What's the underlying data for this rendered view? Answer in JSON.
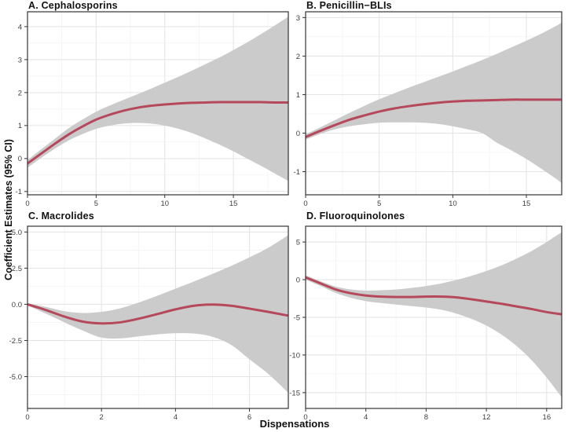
{
  "figure": {
    "y_axis_label": "Coefficient Estimates (95% CI)",
    "x_axis_label": "Dispensations"
  },
  "colors": {
    "curve": "#b5495b",
    "band": "#cbcbcb",
    "grid_major": "#e3e3e3",
    "grid_minor": "#f1f1f1",
    "border": "#333333",
    "tick": "#333333",
    "tick_label": "#404040",
    "plot_bg": "#ffffff"
  },
  "chart_data": [
    {
      "type": "line",
      "title": "A. Cephalosporins",
      "series_name": "coefficient-estimate",
      "x_ticks": [
        0,
        5,
        10,
        15
      ],
      "x_tick_labels": [
        "0",
        "5",
        "10",
        "15"
      ],
      "y_ticks": [
        -1,
        0,
        1,
        2,
        3,
        4
      ],
      "y_tick_labels": [
        "-1",
        "0",
        "1",
        "2",
        "3",
        "4"
      ],
      "xlim": [
        0,
        19
      ],
      "ylim": [
        -1.1,
        4.45
      ],
      "x": [
        0,
        1,
        2,
        3,
        4,
        5,
        6,
        7,
        8,
        9,
        10,
        11,
        12,
        13,
        14,
        15,
        16,
        17,
        18,
        19
      ],
      "line": [
        -0.15,
        0.15,
        0.45,
        0.73,
        0.97,
        1.18,
        1.33,
        1.45,
        1.54,
        1.6,
        1.64,
        1.67,
        1.69,
        1.7,
        1.71,
        1.71,
        1.71,
        1.71,
        1.7,
        1.7
      ],
      "ci_upper": [
        -0.05,
        0.28,
        0.6,
        0.92,
        1.18,
        1.42,
        1.61,
        1.78,
        1.95,
        2.12,
        2.3,
        2.48,
        2.67,
        2.87,
        3.07,
        3.29,
        3.52,
        3.77,
        4.03,
        4.3
      ],
      "ci_lower": [
        -0.28,
        0.02,
        0.3,
        0.55,
        0.74,
        0.9,
        1.0,
        1.06,
        1.08,
        1.06,
        1.0,
        0.9,
        0.77,
        0.6,
        0.42,
        0.22,
        0.0,
        -0.22,
        -0.45,
        -0.68
      ]
    },
    {
      "type": "line",
      "title": "B. Penicillin−BLIs",
      "series_name": "coefficient-estimate",
      "x_ticks": [
        0,
        5,
        10,
        15
      ],
      "x_tick_labels": [
        "0",
        "5",
        "10",
        "15"
      ],
      "y_ticks": [
        -1,
        0,
        1,
        2,
        3
      ],
      "y_tick_labels": [
        "-1",
        "0",
        "1",
        "2",
        "3"
      ],
      "xlim": [
        0,
        17.4
      ],
      "ylim": [
        -1.6,
        3.15
      ],
      "x": [
        0,
        1,
        2,
        3,
        4,
        5,
        6,
        7,
        8,
        9,
        10,
        11,
        12,
        13,
        14,
        15,
        16,
        17,
        17.4
      ],
      "line": [
        -0.1,
        0.06,
        0.21,
        0.35,
        0.46,
        0.56,
        0.64,
        0.7,
        0.75,
        0.79,
        0.82,
        0.84,
        0.85,
        0.86,
        0.87,
        0.87,
        0.87,
        0.87,
        0.87
      ],
      "ci_upper": [
        -0.03,
        0.15,
        0.34,
        0.53,
        0.71,
        0.88,
        1.03,
        1.18,
        1.32,
        1.46,
        1.6,
        1.75,
        1.9,
        2.06,
        2.23,
        2.4,
        2.58,
        2.78,
        2.87
      ],
      "ci_lower": [
        -0.17,
        -0.02,
        0.1,
        0.18,
        0.23,
        0.27,
        0.28,
        0.28,
        0.27,
        0.24,
        0.18,
        0.1,
        0.0,
        -0.25,
        -0.45,
        -0.67,
        -0.92,
        -1.18,
        -1.3
      ]
    },
    {
      "type": "line",
      "title": "C. Macrolides",
      "series_name": "coefficient-estimate",
      "x_ticks": [
        0,
        2,
        4,
        6
      ],
      "x_tick_labels": [
        "0",
        "2",
        "4",
        "6"
      ],
      "y_ticks": [
        -5.0,
        -2.5,
        0.0,
        2.5,
        5.0
      ],
      "y_tick_labels": [
        "-5.0",
        "-2.5",
        "0.0",
        "2.5",
        "5.0"
      ],
      "xlim": [
        0,
        7.05
      ],
      "ylim": [
        -7.2,
        5.4
      ],
      "x": [
        0,
        0.5,
        1,
        1.5,
        2,
        2.5,
        3,
        3.5,
        4,
        4.5,
        5,
        5.5,
        6,
        6.5,
        7,
        7.05
      ],
      "line": [
        0.0,
        -0.4,
        -0.85,
        -1.2,
        -1.32,
        -1.25,
        -1.0,
        -0.68,
        -0.35,
        -0.1,
        -0.02,
        -0.1,
        -0.3,
        -0.52,
        -0.76,
        -0.78
      ],
      "ci_upper": [
        0.08,
        -0.18,
        -0.48,
        -0.6,
        -0.52,
        -0.28,
        0.12,
        0.58,
        1.08,
        1.58,
        2.1,
        2.65,
        3.25,
        3.9,
        4.7,
        4.85
      ],
      "ci_lower": [
        -0.08,
        -0.65,
        -1.25,
        -1.82,
        -2.3,
        -2.36,
        -2.22,
        -2.08,
        -2.0,
        -2.02,
        -2.25,
        -2.8,
        -3.8,
        -4.8,
        -6.0,
        -6.2
      ]
    },
    {
      "type": "line",
      "title": "D. Fluoroquinolones",
      "series_name": "coefficient-estimate",
      "x_ticks": [
        0,
        4,
        8,
        12,
        16
      ],
      "x_tick_labels": [
        "0",
        "4",
        "8",
        "12",
        "16"
      ],
      "y_ticks": [
        -15,
        -10,
        -5,
        0,
        5
      ],
      "y_tick_labels": [
        "-15",
        "-10",
        "-5",
        "0",
        "5"
      ],
      "xlim": [
        0,
        17
      ],
      "ylim": [
        -17.1,
        7.1
      ],
      "x": [
        0,
        1,
        2,
        3,
        4,
        5,
        6,
        7,
        8,
        9,
        10,
        11,
        12,
        13,
        14,
        15,
        16,
        17
      ],
      "line": [
        0.3,
        -0.5,
        -1.3,
        -1.8,
        -2.1,
        -2.25,
        -2.3,
        -2.3,
        -2.25,
        -2.25,
        -2.35,
        -2.6,
        -2.9,
        -3.2,
        -3.55,
        -3.9,
        -4.3,
        -4.6
      ],
      "ci_upper": [
        0.6,
        -0.2,
        -0.9,
        -1.3,
        -1.45,
        -1.4,
        -1.3,
        -1.1,
        -0.85,
        -0.5,
        -0.05,
        0.5,
        1.15,
        1.9,
        2.8,
        3.8,
        5.0,
        6.3
      ],
      "ci_lower": [
        0.0,
        -0.85,
        -1.75,
        -2.4,
        -2.85,
        -3.1,
        -3.3,
        -3.5,
        -3.7,
        -4.0,
        -4.5,
        -5.2,
        -6.1,
        -7.3,
        -8.8,
        -10.7,
        -13.0,
        -15.6
      ]
    }
  ]
}
